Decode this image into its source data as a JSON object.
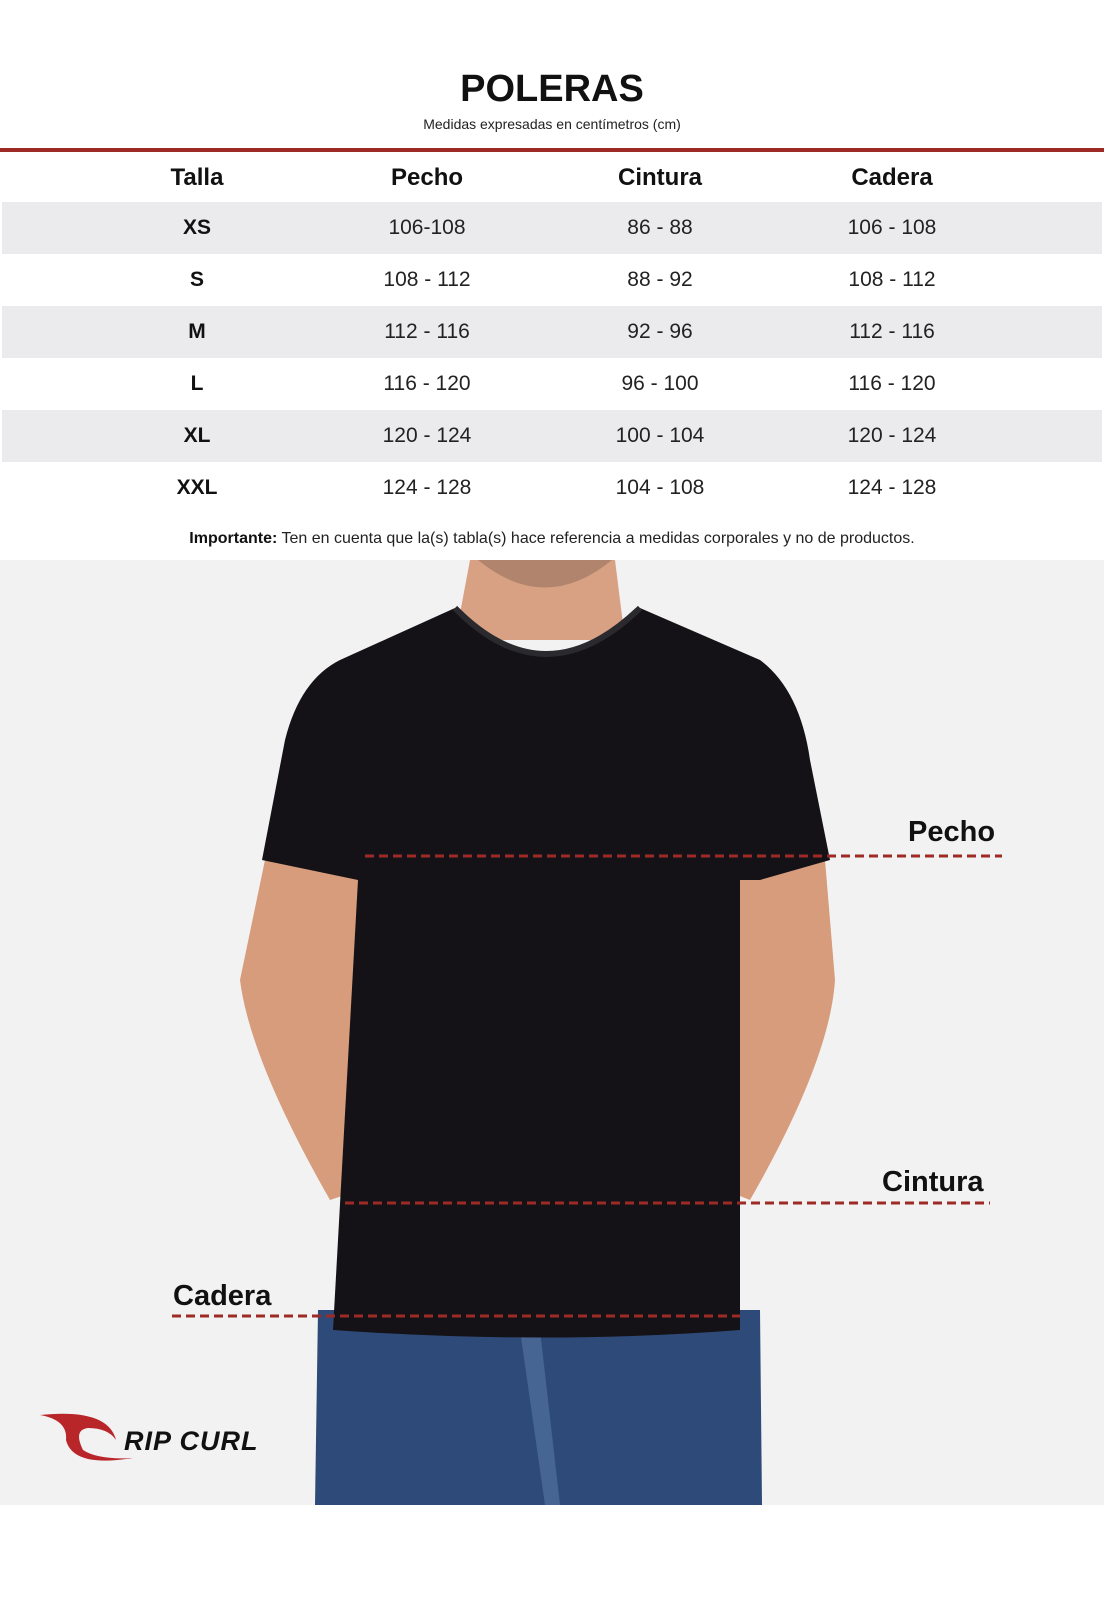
{
  "title": "POLERAS",
  "subtitle": "Medidas expresadas en centímetros (cm)",
  "table": {
    "headers": [
      "Talla",
      "Pecho",
      "Cintura",
      "Cadera"
    ],
    "rows": [
      [
        "XS",
        "106-108",
        "86 - 88",
        "106 - 108"
      ],
      [
        "S",
        "108 - 112",
        "88 - 92",
        "108 - 112"
      ],
      [
        "M",
        "112 - 116",
        "92 - 96",
        "112 - 116"
      ],
      [
        "L",
        "116 - 120",
        "96 - 100",
        "116 - 120"
      ],
      [
        "XL",
        "120 - 124",
        "100 - 104",
        "120 - 124"
      ],
      [
        "XXL",
        "124 - 128",
        "104 - 108",
        "124 - 128"
      ]
    ]
  },
  "note": {
    "bold": "Importante:",
    "text": " Ten en cuenta que la(s) tabla(s) hace referencia a medidas corporales y no de productos."
  },
  "measure_labels": {
    "chest": "Pecho",
    "waist": "Cintura",
    "hip": "Cadera"
  },
  "brand": {
    "logo_text": "RIP CURL"
  },
  "colors": {
    "accent": "#9e2a25",
    "stripe": "#ebebee",
    "background_photo": "#f2f2f2"
  }
}
